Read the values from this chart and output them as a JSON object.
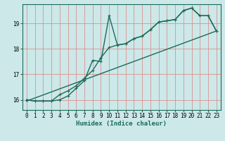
{
  "xlabel": "Humidex (Indice chaleur)",
  "bg_color": "#cce8e8",
  "line_color": "#1a6b5a",
  "grid_color_v": "#e08080",
  "grid_color_h": "#e08080",
  "xlim": [
    -0.5,
    23.5
  ],
  "ylim": [
    15.6,
    19.75
  ],
  "yticks": [
    16,
    17,
    18,
    19
  ],
  "xticks": [
    0,
    1,
    2,
    3,
    4,
    5,
    6,
    7,
    8,
    9,
    10,
    11,
    12,
    13,
    14,
    15,
    16,
    17,
    18,
    19,
    20,
    21,
    22,
    23
  ],
  "line1_x": [
    0,
    1,
    2,
    3,
    4,
    5,
    6,
    7,
    8,
    9,
    10,
    11,
    12,
    13,
    14,
    15,
    16,
    17,
    18,
    19,
    20,
    21,
    22,
    23
  ],
  "line1_y": [
    16.0,
    15.95,
    15.95,
    15.95,
    16.0,
    16.15,
    16.45,
    16.75,
    17.55,
    17.5,
    19.3,
    18.15,
    18.2,
    18.4,
    18.5,
    18.75,
    19.05,
    19.1,
    19.15,
    19.5,
    19.6,
    19.3,
    19.3,
    18.7
  ],
  "line2_x": [
    0,
    1,
    2,
    3,
    4,
    5,
    6,
    7,
    8,
    9,
    10,
    11,
    12,
    13,
    14,
    15,
    16,
    17,
    18,
    19,
    20,
    21,
    22,
    23
  ],
  "line2_y": [
    16.0,
    15.95,
    15.95,
    15.95,
    16.2,
    16.35,
    16.55,
    16.85,
    17.15,
    17.65,
    18.05,
    18.15,
    18.2,
    18.4,
    18.5,
    18.75,
    19.05,
    19.1,
    19.15,
    19.5,
    19.6,
    19.3,
    19.3,
    18.7
  ],
  "line3_x": [
    0,
    23
  ],
  "line3_y": [
    15.95,
    18.7
  ]
}
